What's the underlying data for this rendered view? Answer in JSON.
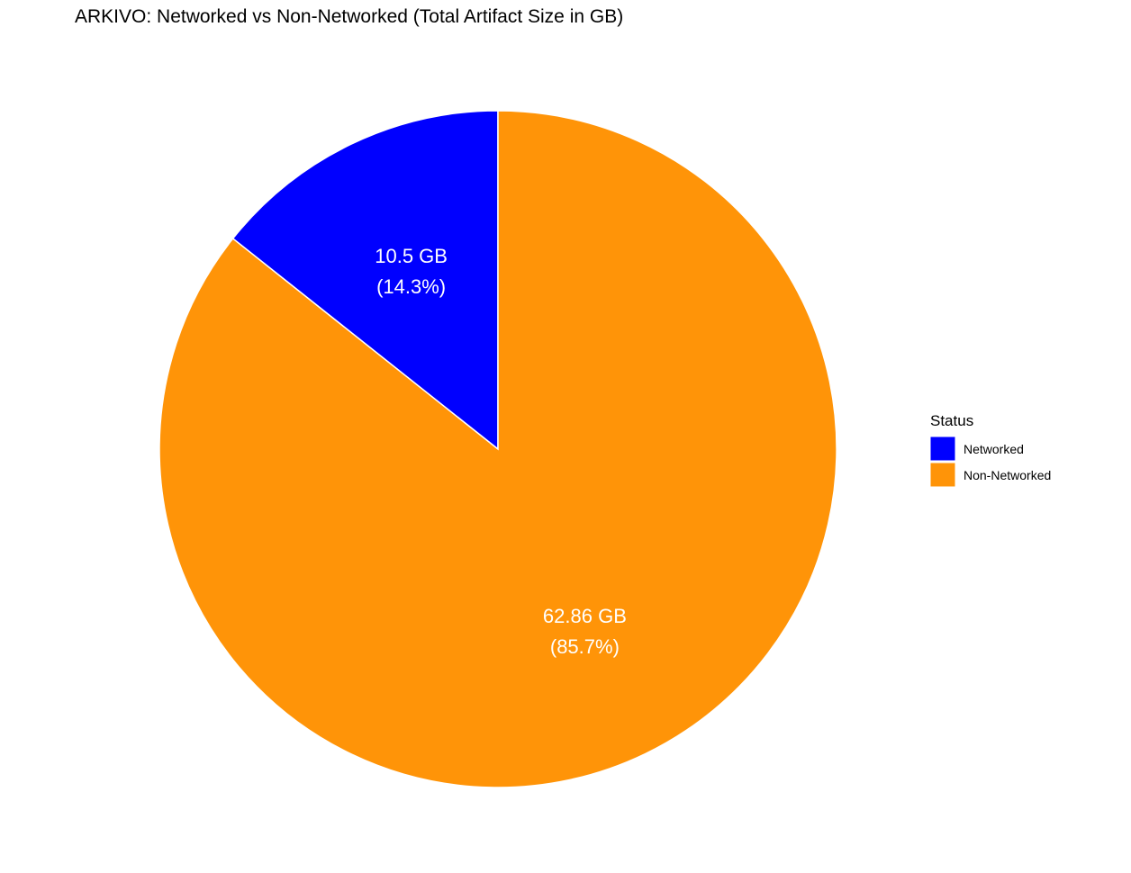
{
  "chart_data": {
    "type": "pie",
    "title": "ARKIVO: Networked vs Non-Networked (Total Artifact Size in GB)",
    "legend_title": "Status",
    "legend_position": "right",
    "start_angle_deg": 0,
    "direction": "counterclockwise",
    "slices": [
      {
        "name": "Networked",
        "value": 10.5,
        "percent": 14.3,
        "value_label": "10.5 GB",
        "percent_label": "(14.3%)",
        "color": "#0000ff"
      },
      {
        "name": "Non-Networked",
        "value": 62.86,
        "percent": 85.7,
        "value_label": "62.86 GB",
        "percent_label": "(85.7%)",
        "color": "#ff9408"
      }
    ]
  }
}
